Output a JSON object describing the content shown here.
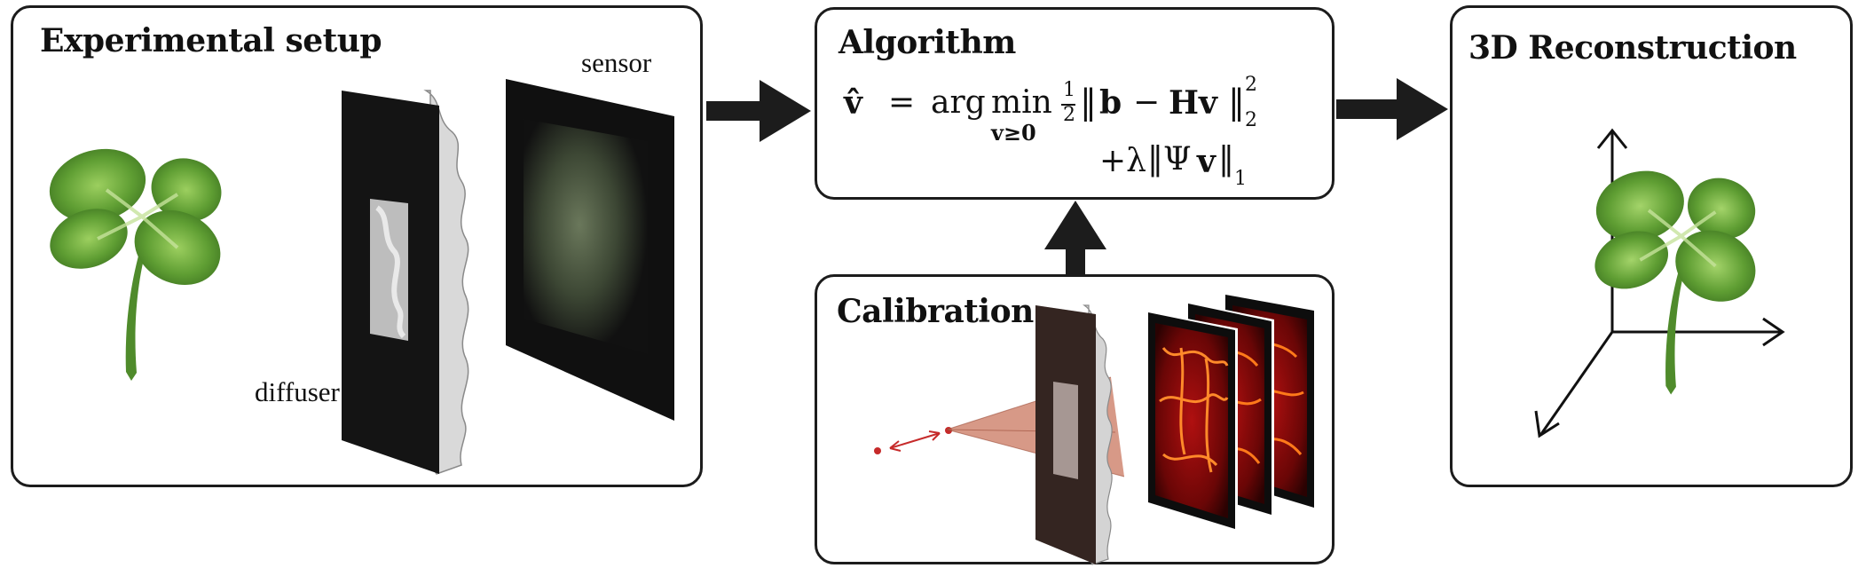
{
  "panels": {
    "experimental_setup": {
      "title": "Experimental setup",
      "labels": {
        "sensor": "sensor",
        "diffuser": "diffuser"
      }
    },
    "algorithm": {
      "title": "Algorithm",
      "equation": {
        "lhs": "v̂",
        "equals": "=",
        "arg": "arg",
        "min": "min",
        "min_subscript": "v≥0",
        "frac_num": "1",
        "frac_den": "2",
        "norm_left": "‖",
        "b": "b",
        "minus": "−",
        "Hv": "Hv",
        "norm_right": "‖",
        "sup2": "2",
        "sub2": "2",
        "plus_lambda": "+λ",
        "psi_open": "‖Ψ",
        "v2": "v",
        "psi_close": "‖",
        "sub1": "1"
      }
    },
    "reconstruction": {
      "title": "3D Reconstruction"
    },
    "calibration": {
      "title": "Calibration"
    }
  },
  "colors": {
    "border": "#1c1c1c",
    "arrow": "#1c1c1c",
    "leaf_dark": "#3f7e22",
    "leaf_light": "#86c24a",
    "diffuser": "#c8c8c8",
    "sensor_glow": "#6f7d5f",
    "caustic": "#ff6a1a",
    "point_source": "#c62a2a"
  }
}
